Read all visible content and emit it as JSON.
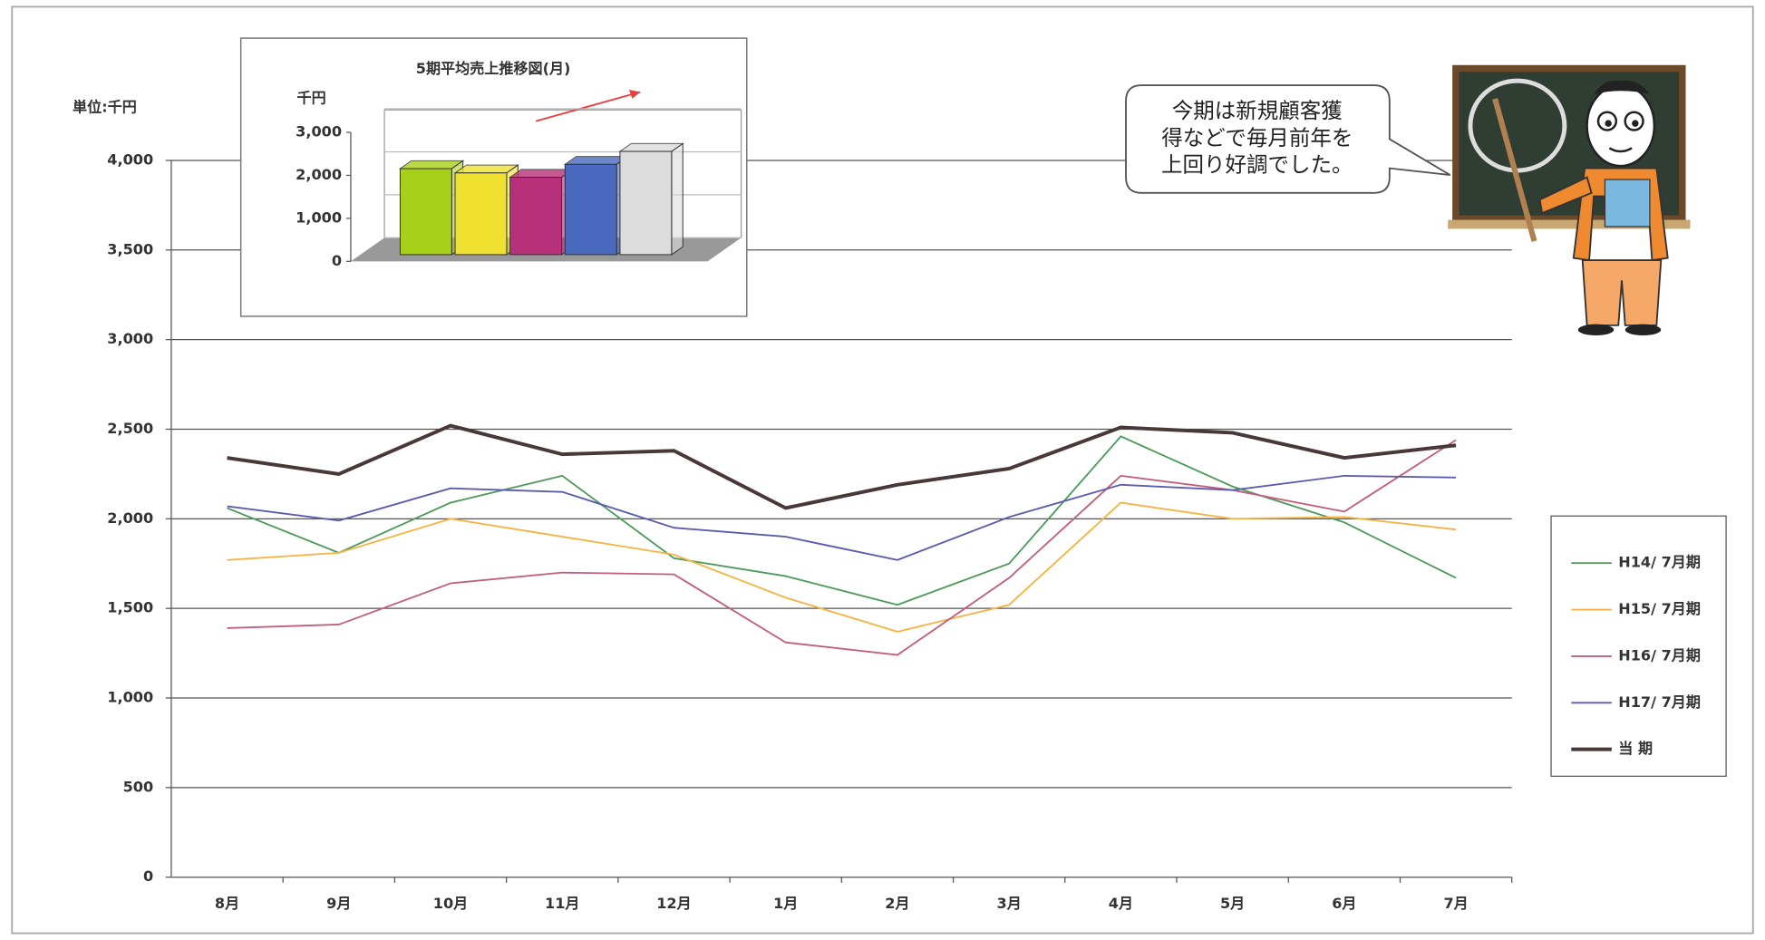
{
  "chart_data": [
    {
      "type": "line",
      "unit_label": "単位:千円",
      "categories": [
        "8月",
        "9月",
        "10月",
        "11月",
        "12月",
        "1月",
        "2月",
        "3月",
        "4月",
        "5月",
        "6月",
        "7月"
      ],
      "series": [
        {
          "name": "H14/ 7月期",
          "color": "#4f9a5c",
          "values": [
            2060,
            1810,
            2090,
            2240,
            1780,
            1680,
            1520,
            1750,
            2460,
            2180,
            1980,
            1670
          ]
        },
        {
          "name": "H15/ 7月期",
          "color": "#f5b445",
          "values": [
            1770,
            1810,
            2000,
            1900,
            1800,
            1560,
            1370,
            1520,
            2090,
            2000,
            2010,
            1940
          ]
        },
        {
          "name": "H16/ 7月期",
          "color": "#c0607c",
          "values": [
            1390,
            1410,
            1640,
            1700,
            1690,
            1310,
            1240,
            1670,
            2240,
            2160,
            2040,
            2440
          ]
        },
        {
          "name": "H17/ 7月期",
          "color": "#5c5cae",
          "values": [
            2070,
            1990,
            2170,
            2150,
            1950,
            1900,
            1770,
            2010,
            2190,
            2160,
            2240,
            2230
          ]
        },
        {
          "name": "当 期",
          "color": "#4a3838",
          "values": [
            2340,
            2250,
            2520,
            2360,
            2380,
            2060,
            2190,
            2280,
            2510,
            2480,
            2340,
            2410
          ]
        }
      ],
      "ylim": [
        0,
        4000
      ],
      "yticks": [
        0,
        500,
        {
          "value": 1000,
          "label": "1,000"
        },
        {
          "value": 1500,
          "label": "1,500"
        },
        {
          "value": 2000,
          "label": "2,000"
        },
        {
          "value": 2500,
          "label": "2,500"
        },
        {
          "value": 3000,
          "label": "3,000"
        },
        {
          "value": 3500,
          "label": "3,500"
        },
        {
          "value": 4000,
          "label": "4,000"
        }
      ],
      "grid": true
    },
    {
      "type": "bar",
      "title": "5期平均売上推移図(月)",
      "unit_label": "千円",
      "values": [
        2000,
        1900,
        1800,
        2100,
        2400
      ],
      "colors": [
        "#a8d018",
        "#f0e030",
        "#b8307a",
        "#4a6ac0",
        "#dcdcdc"
      ],
      "ylim": [
        0,
        3000
      ],
      "yticks": [
        0,
        {
          "value": 1000,
          "label": "1,000"
        },
        {
          "value": 2000,
          "label": "2,000"
        },
        {
          "value": 3000,
          "label": "3,000"
        }
      ]
    }
  ],
  "callout": {
    "lines": [
      "今期は新規顧客獲",
      "得などで毎月前年を",
      "上回り好調でした。"
    ]
  }
}
